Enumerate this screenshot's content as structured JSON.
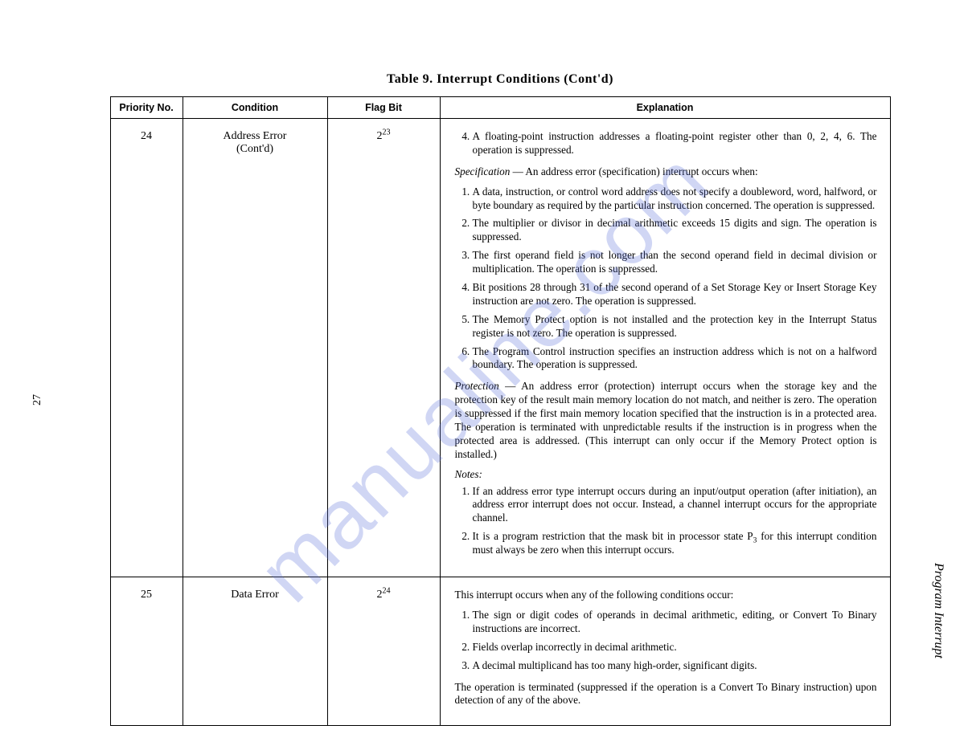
{
  "page_number_left": "27",
  "side_label": "Program Interrupt",
  "watermark_text": "manualine.com",
  "watermark_color": "#5a6fd8",
  "table": {
    "title": "Table 9. Interrupt Conditions (Cont'd)",
    "columns": [
      "Priority No.",
      "Condition",
      "Flag Bit",
      "Explanation"
    ],
    "rows": [
      {
        "priority": "24",
        "condition_line1": "Address Error",
        "condition_line2": "(Cont'd)",
        "flag_base": "2",
        "flag_exp": "23",
        "row1_item4": "A floating-point instruction addresses a floating-point register other than 0, 2, 4, 6. The operation is suppressed.",
        "spec_head": "Specification",
        "spec_intro": " — An address error (specification) interrupt occurs when:",
        "spec_items": [
          "A data, instruction, or control word address does not specify a doubleword, word, halfword, or byte boundary as required by the particular instruction concerned. The operation is suppressed.",
          "The multiplier or divisor in decimal arithmetic exceeds 15 digits and sign. The operation is suppressed.",
          "The first operand field is not longer than the second operand field in decimal division or multiplication. The operation is suppressed.",
          "Bit positions 28 through 31 of the second operand of a Set Storage Key or Insert Storage Key instruction are not zero. The operation is suppressed.",
          "The Memory Protect option is not installed and the protection key in the Interrupt Status register is not zero. The operation is suppressed.",
          "The Program Control instruction specifies an instruction address which is not on a halfword boundary. The operation is suppressed."
        ],
        "prot_head": "Protection",
        "prot_body": " — An address error (protection) interrupt occurs when the storage key and the protection key of the result main memory location do not match, and neither is zero. The operation is suppressed if the first main memory location specified that the instruction is in a protected area. The operation is terminated with unpredictable results if the instruction is in progress when the protected area is addressed. (This interrupt can only occur if the Memory Protect option is installed.)",
        "notes_head": "Notes:",
        "note1": "If an address error type interrupt occurs during an input/output operation (after initiation), an address error interrupt does not occur. Instead, a channel interrupt occurs for the appropriate channel.",
        "note2_a": "It is a program restriction that the mask bit in processor state P",
        "note2_sub": "3",
        "note2_b": " for this interrupt condition must always be zero when this interrupt occurs."
      },
      {
        "priority": "25",
        "condition_line1": "Data Error",
        "condition_line2": "",
        "flag_base": "2",
        "flag_exp": "24",
        "intro": "This interrupt occurs when any of the following conditions occur:",
        "items": [
          "The sign or digit codes of operands in decimal arithmetic, editing, or Convert To Binary instructions are incorrect.",
          "Fields overlap incorrectly in decimal arithmetic.",
          "A decimal multiplicand has too many high-order, significant digits."
        ],
        "trailer": "The operation is terminated (suppressed if the operation is a Convert To Binary instruction) upon detection of any of the above."
      }
    ]
  }
}
